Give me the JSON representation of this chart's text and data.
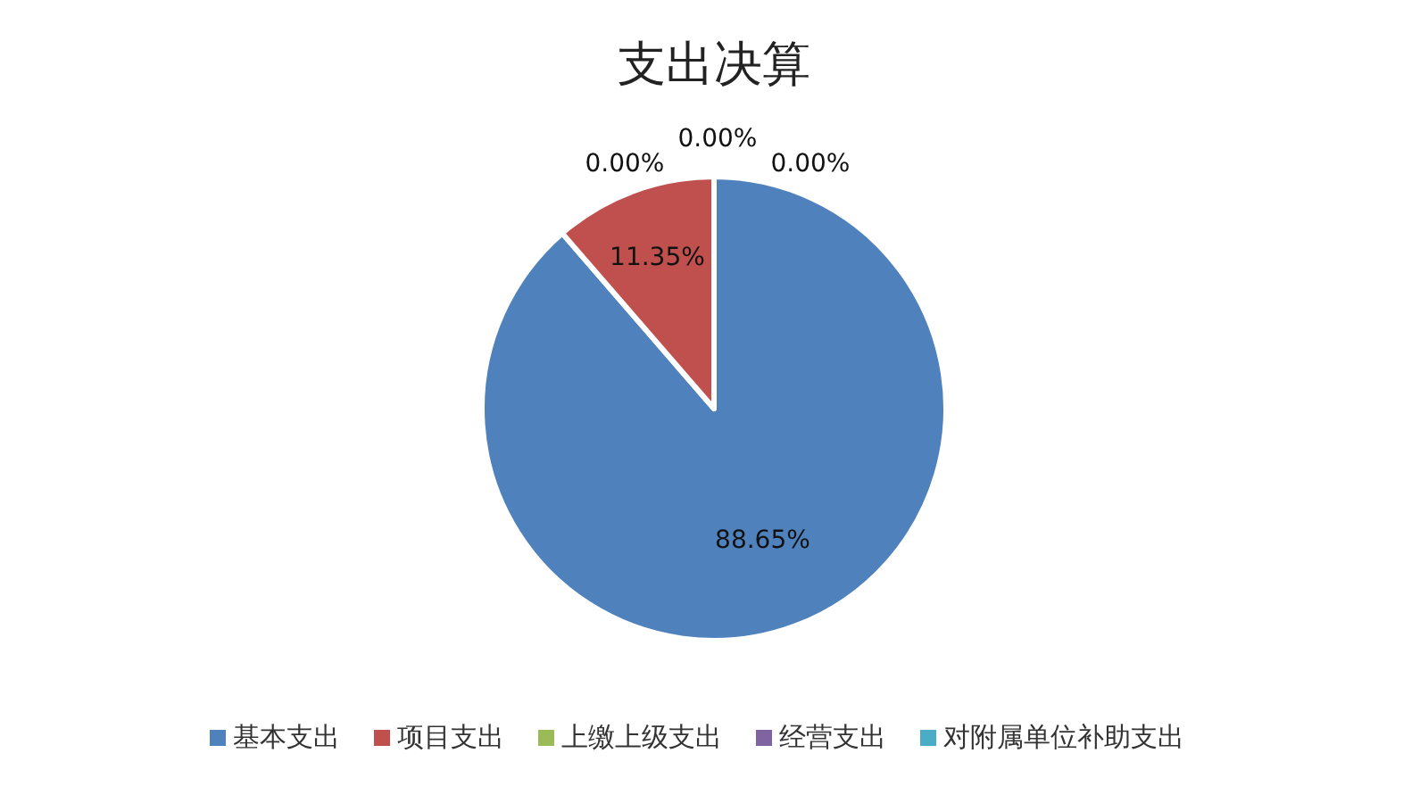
{
  "chart_data": {
    "type": "pie",
    "title": "支出决算",
    "categories": [
      "基本支出",
      "项目支出",
      "上缴上级支出",
      "经营支出",
      "对附属单位补助支出"
    ],
    "values": [
      88.65,
      11.35,
      0,
      0,
      0
    ],
    "value_labels": [
      "88.65%",
      "11.35%",
      "0.00%",
      "0.00%",
      "0.00%"
    ],
    "colors": [
      "#4f81bd",
      "#c0504d",
      "#9bbb59",
      "#8064a2",
      "#4bacc6"
    ],
    "legend": "bottom"
  }
}
